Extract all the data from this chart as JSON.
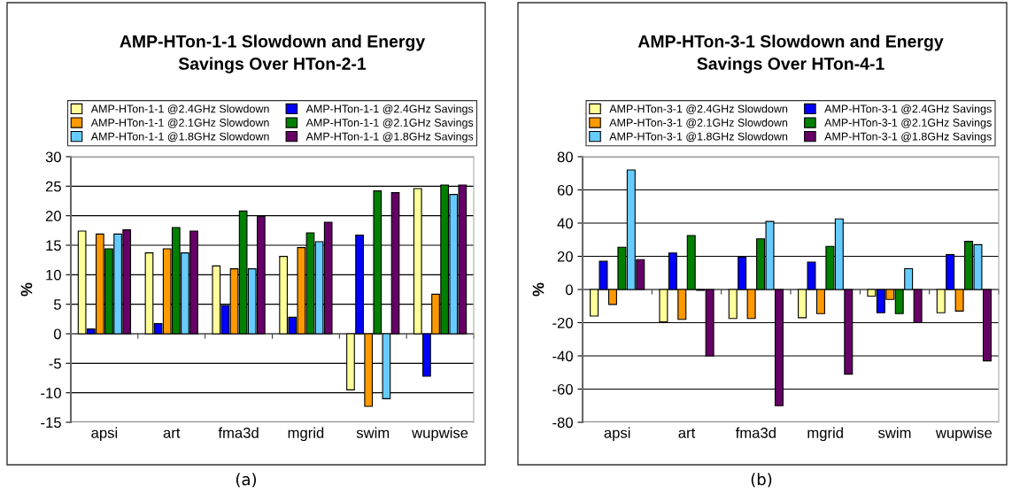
{
  "chart_data": [
    {
      "type": "bar",
      "title": "AMP-HTon-1-1 Slowdown and Energy\nSavings Over HTon-2-1",
      "ylabel": "%",
      "categories": [
        "apsi",
        "art",
        "fma3d",
        "mgrid",
        "swim",
        "wupwise"
      ],
      "series": [
        {
          "name": "AMP-HTon-1-1 @2.4GHz Slowdown",
          "color": "#ffff99",
          "values": [
            17.4,
            13.7,
            11.5,
            13.1,
            -9.5,
            24.6
          ]
        },
        {
          "name": "AMP-HTon-1-1 @2.4GHz Savings",
          "color": "#0000ff",
          "values": [
            0.8,
            1.7,
            4.8,
            2.8,
            16.7,
            -7.2
          ]
        },
        {
          "name": "AMP-HTon-1-1 @2.1GHz Slowdown",
          "color": "#ff9900",
          "values": [
            16.9,
            14.4,
            11.0,
            14.6,
            -12.3,
            6.7
          ]
        },
        {
          "name": "AMP-HTon-1-1 @2.1GHz Savings",
          "color": "#008000",
          "values": [
            14.4,
            18.0,
            20.8,
            17.1,
            24.2,
            25.2
          ]
        },
        {
          "name": "AMP-HTon-1-1 @1.8GHz Slowdown",
          "color": "#66ccff",
          "values": [
            16.9,
            13.7,
            11.0,
            15.6,
            -11.0,
            23.6
          ]
        },
        {
          "name": "AMP-HTon-1-1 @1.8GHz Savings",
          "color": "#660066",
          "values": [
            17.6,
            17.4,
            19.9,
            18.9,
            23.9,
            25.2
          ]
        }
      ],
      "ylim": [
        -15,
        30
      ],
      "yticks": [
        -15,
        -10,
        -5,
        0,
        5,
        10,
        15,
        20,
        25,
        30
      ],
      "grid": "y",
      "legend": "top",
      "annotations": [
        "(a)"
      ]
    },
    {
      "type": "bar",
      "title": "AMP-HTon-3-1 Slowdown and Energy\nSavings Over HTon-4-1",
      "ylabel": "%",
      "categories": [
        "apsi",
        "art",
        "fma3d",
        "mgrid",
        "swim",
        "wupwise"
      ],
      "series": [
        {
          "name": "AMP-HTon-3-1 @2.4GHz Slowdown",
          "color": "#ffff99",
          "values": [
            -16,
            -19.5,
            -17.5,
            -17,
            -4,
            -14
          ]
        },
        {
          "name": "AMP-HTon-3-1 @2.4GHz Savings",
          "color": "#0000ff",
          "values": [
            17,
            22,
            19.5,
            16.5,
            -14,
            21
          ]
        },
        {
          "name": "AMP-HTon-3-1 @2.1GHz Slowdown",
          "color": "#ff9900",
          "values": [
            -9,
            -18,
            -17.5,
            -14.5,
            -6,
            -13
          ]
        },
        {
          "name": "AMP-HTon-3-1 @2.1GHz Savings",
          "color": "#008000",
          "values": [
            25.5,
            32.5,
            30.5,
            26,
            -14.5,
            29
          ]
        },
        {
          "name": "AMP-HTon-3-1 @1.8GHz Slowdown",
          "color": "#66ccff",
          "values": [
            72,
            -0.5,
            41,
            42.5,
            12.5,
            27
          ]
        },
        {
          "name": "AMP-HTon-3-1 @1.8GHz Savings",
          "color": "#660066",
          "values": [
            18,
            -40,
            -70,
            -51,
            -20,
            -43
          ]
        }
      ],
      "ylim": [
        -80,
        80
      ],
      "yticks": [
        -80,
        -60,
        -40,
        -20,
        0,
        20,
        40,
        60,
        80
      ],
      "grid": "y",
      "legend": "top",
      "annotations": [
        "(b)"
      ]
    }
  ]
}
